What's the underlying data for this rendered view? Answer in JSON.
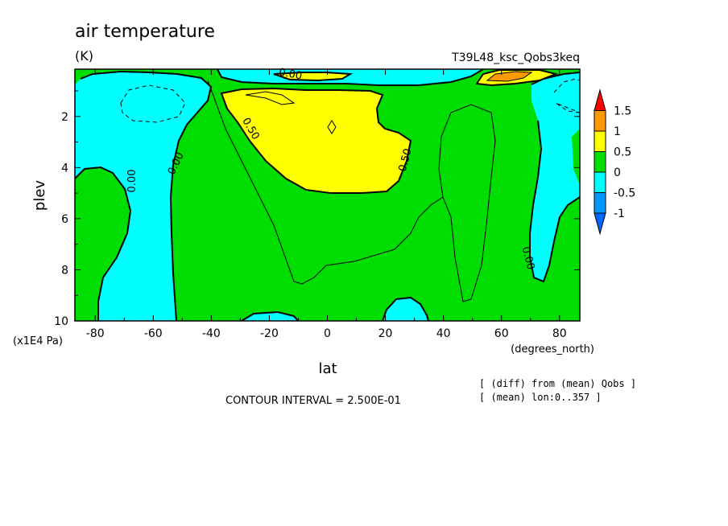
{
  "chart_data": {
    "type": "contour",
    "title": "air temperature",
    "units_label": "(K)",
    "experiment": "T39L48_ksc_Qobs3keq",
    "xlabel": "lat",
    "xunits": "(degrees_north)",
    "ylabel": "plev",
    "yunits": "(x1E4 Pa)",
    "xlim": [
      -87,
      87
    ],
    "ylim": [
      10,
      0.15
    ],
    "x_ticks": [
      "-80",
      "-60",
      "-40",
      "-20",
      "0",
      "20",
      "40",
      "60",
      "80"
    ],
    "y_ticks": [
      "2",
      "4",
      "6",
      "8",
      "10"
    ],
    "contour_interval_text": "CONTOUR INTERVAL = 2.500E-01",
    "notes": [
      "[ (diff) from (mean) Qobs ]",
      "[ (mean) lon:0..357 ]"
    ],
    "contour_labels": [
      "0.00",
      "0.00",
      "0.00",
      "0.00",
      "0.50",
      "0.50"
    ],
    "colorbar": {
      "levels": [
        "1.5",
        "1",
        "0.5",
        "0",
        "-0.5",
        "-1"
      ],
      "colors": [
        "#ff0000",
        "#ff9900",
        "#ffff00",
        "#00dd00",
        "#00ffff",
        "#0099ff",
        "#0066ff"
      ]
    },
    "fill_colors": {
      "below_-1": "#0066ff",
      "-1_to_-0.5": "#0099ff",
      "-0.5_to_0": "#00ffff",
      "0_to_0.5": "#00dd00",
      "0.5_to_1": "#ffff00",
      "1_to_1.5": "#ff9900",
      "above_1.5": "#ff0000"
    },
    "regions": [
      {
        "name": "sh-high-lat-negative",
        "range": "-0.5_to_0",
        "lat": [
          -85,
          -53
        ],
        "plev": [
          0.2,
          10
        ]
      },
      {
        "name": "sh-polar-min",
        "range": "-0.5_to_0",
        "lat": [
          -74,
          -60
        ],
        "plev": [
          1,
          3
        ]
      },
      {
        "name": "tropical-upper-warm",
        "range": "0.5_to_1",
        "lat": [
          -37,
          30
        ],
        "plev": [
          1,
          5
        ]
      },
      {
        "name": "nh-high-lat-negative",
        "range": "-0.5_to_0",
        "lat": [
          66,
          87
        ],
        "plev": [
          0.4,
          9
        ]
      },
      {
        "name": "stratosphere-negative",
        "range": "-0.5_to_0",
        "lat": [
          -40,
          40
        ],
        "plev": [
          0.15,
          0.5
        ]
      },
      {
        "name": "nh-strat-warm",
        "range": "1_to_1.5",
        "lat": [
          55,
          75
        ],
        "plev": [
          0.15,
          0.4
        ]
      },
      {
        "name": "surface-negative",
        "range": "-0.5_to_0",
        "lat": [
          5,
          30
        ],
        "plev": [
          9.3,
          10
        ]
      }
    ]
  }
}
